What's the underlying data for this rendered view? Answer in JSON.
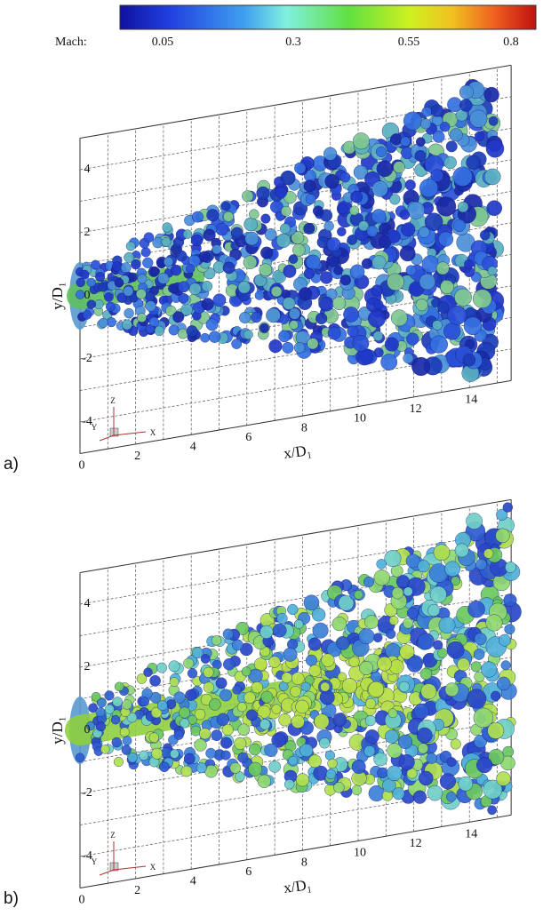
{
  "colorbar": {
    "label": "Mach:",
    "ticks": [
      "0.05",
      "0.3",
      "0.55",
      "0.8"
    ]
  },
  "panels": [
    {
      "label": "a)",
      "x_axis_label": "x/D₁",
      "y_axis_label": "y/D₁",
      "x_ticks": [
        "0",
        "2",
        "4",
        "6",
        "8",
        "10",
        "12",
        "14"
      ],
      "y_ticks": [
        "4",
        "2",
        "0",
        "-2",
        "-4"
      ],
      "triad": [
        "Z",
        "Y",
        "X"
      ]
    },
    {
      "label": "b)",
      "x_axis_label": "x/D₁",
      "y_axis_label": "y/D₁",
      "x_ticks": [
        "0",
        "2",
        "4",
        "6",
        "8",
        "10",
        "12",
        "14"
      ],
      "y_ticks": [
        "4",
        "2",
        "0",
        "-2",
        "-4"
      ],
      "triad": [
        "Z",
        "Y",
        "X"
      ]
    }
  ]
}
